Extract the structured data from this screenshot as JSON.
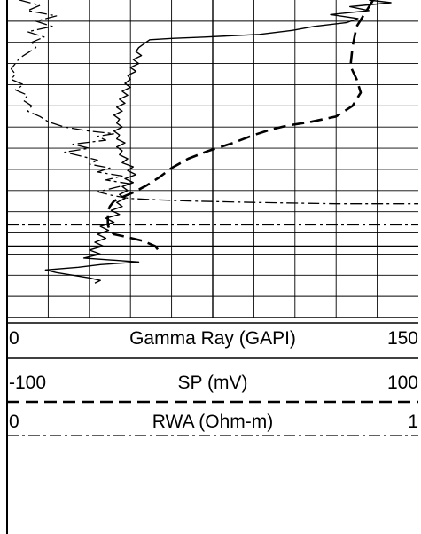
{
  "chart_data": {
    "type": "line",
    "tracks": [
      {
        "name": "Gamma Ray (GAPI)",
        "min": "0",
        "max": "150",
        "xlim": [
          0,
          150
        ],
        "line_style": "solid",
        "color": "#000000",
        "points": [
          [
            132,
            0
          ],
          [
            140,
            2
          ],
          [
            125,
            5
          ],
          [
            132,
            8
          ],
          [
            118,
            11
          ],
          [
            128,
            14
          ],
          [
            124,
            17
          ],
          [
            112,
            20
          ],
          [
            104,
            23
          ],
          [
            92,
            26
          ],
          [
            72,
            28
          ],
          [
            60,
            29
          ],
          [
            52,
            30
          ],
          [
            50,
            33
          ],
          [
            48,
            36
          ],
          [
            47,
            39
          ],
          [
            49,
            42
          ],
          [
            46,
            45
          ],
          [
            48,
            48
          ],
          [
            45,
            51
          ],
          [
            47,
            54
          ],
          [
            44,
            57
          ],
          [
            45,
            60
          ],
          [
            43,
            63
          ],
          [
            45,
            66
          ],
          [
            42,
            69
          ],
          [
            44,
            72
          ],
          [
            41,
            75
          ],
          [
            43,
            78
          ],
          [
            40,
            81
          ],
          [
            42,
            84
          ],
          [
            39,
            87
          ],
          [
            41,
            90
          ],
          [
            40,
            93
          ],
          [
            42,
            96
          ],
          [
            39,
            99
          ],
          [
            41,
            102
          ],
          [
            40,
            105
          ],
          [
            43,
            108
          ],
          [
            40,
            111
          ],
          [
            42,
            114
          ],
          [
            41,
            117
          ],
          [
            44,
            120
          ],
          [
            42,
            123
          ],
          [
            46,
            126
          ],
          [
            44,
            129
          ],
          [
            47,
            132
          ],
          [
            43,
            135
          ],
          [
            46,
            138
          ],
          [
            42,
            141
          ],
          [
            44,
            144
          ],
          [
            41,
            147
          ],
          [
            43,
            150
          ],
          [
            40,
            153
          ],
          [
            42,
            156
          ],
          [
            38,
            159
          ],
          [
            41,
            162
          ],
          [
            36,
            165
          ],
          [
            39,
            168
          ],
          [
            34,
            171
          ],
          [
            37,
            174
          ],
          [
            33,
            177
          ],
          [
            36,
            180
          ],
          [
            32,
            183
          ],
          [
            35,
            186
          ],
          [
            30,
            189
          ],
          [
            34,
            192
          ],
          [
            28,
            195
          ],
          [
            48,
            198
          ],
          [
            34,
            200
          ],
          [
            26,
            202
          ],
          [
            20,
            203
          ],
          [
            14,
            204
          ],
          [
            18,
            206
          ],
          [
            24,
            208
          ],
          [
            30,
            210
          ],
          [
            34,
            212
          ],
          [
            32,
            214
          ]
        ]
      },
      {
        "name": "SP (mV)",
        "min": "-100",
        "max": "100",
        "xlim": [
          -100,
          100
        ],
        "line_style": "dashed",
        "color": "#000000",
        "points": [
          [
            78,
            0
          ],
          [
            74,
            10
          ],
          [
            70,
            20
          ],
          [
            68,
            35
          ],
          [
            67,
            50
          ],
          [
            70,
            60
          ],
          [
            72,
            70
          ],
          [
            68,
            80
          ],
          [
            60,
            88
          ],
          [
            48,
            92
          ],
          [
            36,
            95
          ],
          [
            28,
            98
          ],
          [
            20,
            102
          ],
          [
            10,
            108
          ],
          [
            -2,
            114
          ],
          [
            -12,
            120
          ],
          [
            -20,
            127
          ],
          [
            -26,
            134
          ],
          [
            -32,
            140
          ],
          [
            -38,
            145
          ],
          [
            -44,
            149
          ],
          [
            -48,
            152
          ],
          [
            -50,
            156
          ],
          [
            -51,
            160
          ],
          [
            -51,
            165
          ],
          [
            -51,
            170
          ],
          [
            -50,
            174
          ],
          [
            -48,
            177
          ],
          [
            -42,
            179
          ],
          [
            -34,
            182
          ],
          [
            -28,
            186
          ],
          [
            -26,
            190
          ]
        ]
      },
      {
        "name": "RWA (Ohm-m)",
        "min": "0",
        "max": "1",
        "xlim": [
          0,
          1
        ],
        "line_style": "dash-dot",
        "color": "#000000",
        "points": [
          [
            0.03,
            0
          ],
          [
            0.08,
            4
          ],
          [
            0.05,
            8
          ],
          [
            0.12,
            12
          ],
          [
            0.07,
            16
          ],
          [
            0.11,
            20
          ],
          [
            0.05,
            24
          ],
          [
            0.09,
            28
          ],
          [
            0.06,
            32
          ],
          [
            0.07,
            36
          ],
          [
            0.05,
            40
          ],
          [
            0.03,
            44
          ],
          [
            0.02,
            48
          ],
          [
            0.01,
            52
          ],
          [
            0.02,
            56
          ],
          [
            0.01,
            60
          ],
          [
            0.04,
            64
          ],
          [
            0.02,
            68
          ],
          [
            0.05,
            72
          ],
          [
            0.04,
            76
          ],
          [
            0.06,
            80
          ],
          [
            0.05,
            84
          ],
          [
            0.08,
            88
          ],
          [
            0.1,
            92
          ],
          [
            0.14,
            96
          ],
          [
            0.2,
            99
          ],
          [
            0.26,
            101
          ],
          [
            0.22,
            103
          ],
          [
            0.24,
            106
          ],
          [
            0.16,
            109
          ],
          [
            0.2,
            112
          ],
          [
            0.14,
            115
          ],
          [
            0.18,
            118
          ],
          [
            0.22,
            121
          ],
          [
            0.2,
            124
          ],
          [
            0.25,
            127
          ],
          [
            0.22,
            130
          ],
          [
            0.28,
            133
          ],
          [
            0.24,
            136
          ],
          [
            0.3,
            139
          ],
          [
            0.26,
            142
          ],
          [
            0.22,
            145
          ],
          [
            0.26,
            148
          ],
          [
            0.3,
            150
          ],
          [
            0.36,
            151
          ],
          [
            0.45,
            152
          ],
          [
            0.6,
            153
          ],
          [
            0.8,
            154
          ],
          [
            1.0,
            154
          ]
        ]
      }
    ],
    "horizontal_lines": [
      {
        "y": 170,
        "line_style": "dash-dot"
      },
      {
        "y": 186,
        "line_style": "solid"
      }
    ],
    "depth_range": [
      0,
      240
    ],
    "grid": true,
    "grid_columns": 10,
    "grid_rows": 15
  }
}
